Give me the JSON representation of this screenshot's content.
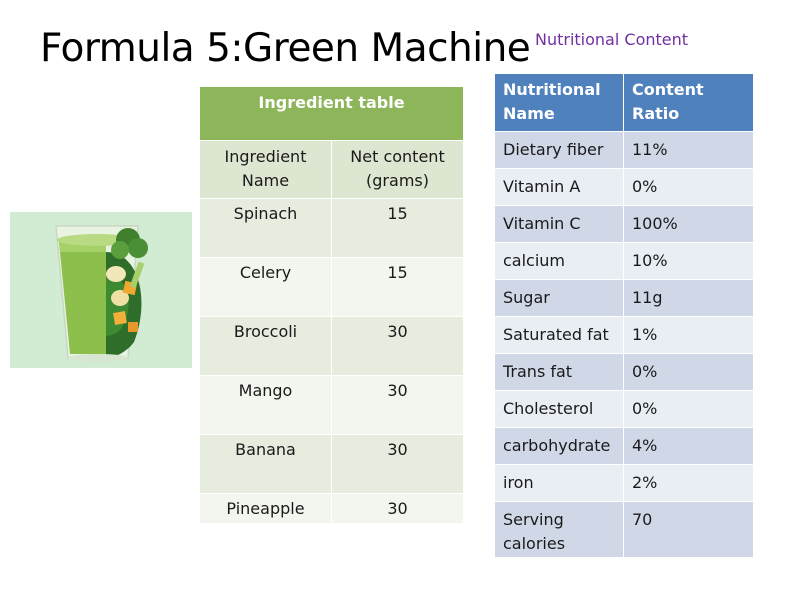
{
  "slide": {
    "title": "Formula 5:Green Machine",
    "subtitle": "Nutritional Content"
  },
  "image": {
    "description_icon": "green-smoothie-image"
  },
  "ingredient_table": {
    "title": "Ingredient table",
    "columns": [
      "Ingredient Name",
      "Net content (grams)"
    ],
    "rows": [
      {
        "name": "Spinach",
        "grams": "15"
      },
      {
        "name": "Celery",
        "grams": "15"
      },
      {
        "name": "Broccoli",
        "grams": "30"
      },
      {
        "name": "Mango",
        "grams": "30"
      },
      {
        "name": "Banana",
        "grams": "30"
      },
      {
        "name": "Pineapple",
        "grams": "30"
      }
    ]
  },
  "nutrition_table": {
    "columns": [
      "Nutritional Name",
      "Content Ratio"
    ],
    "rows": [
      {
        "name": "Dietary fiber",
        "value": "11%"
      },
      {
        "name": "Vitamin A",
        "value": "0%"
      },
      {
        "name": "Vitamin C",
        "value": "100%"
      },
      {
        "name": "calcium",
        "value": "10%"
      },
      {
        "name": "Sugar",
        "value": "11g"
      },
      {
        "name": "Saturated fat",
        "value": "1%"
      },
      {
        "name": "Trans fat",
        "value": "0%"
      },
      {
        "name": "Cholesterol",
        "value": "0%"
      },
      {
        "name": "carbohydrate",
        "value": "4%"
      },
      {
        "name": "iron",
        "value": "2%"
      },
      {
        "name": "Serving calories",
        "value": "70"
      }
    ]
  },
  "colors": {
    "ingredient_header": "#8db55a",
    "nutrition_header": "#4f81bd",
    "subtitle": "#7030a0"
  }
}
